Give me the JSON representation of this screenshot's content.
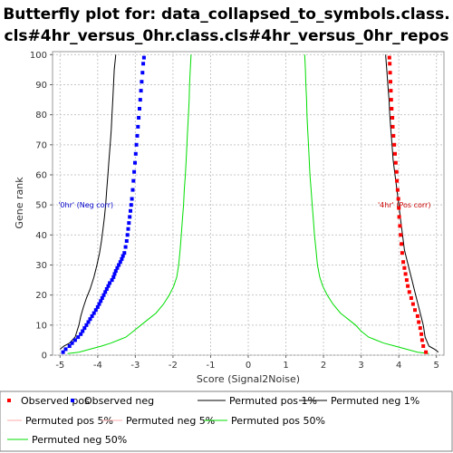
{
  "chart_data": {
    "type": "line",
    "title_lines": [
      "Butterfly plot for: data_collapsed_to_symbols.class.",
      "cls#4hr_versus_0hr.class.cls#4hr_versus_0hr_repos"
    ],
    "xlabel": "Score (Signal2Noise)",
    "ylabel": "Gene rank",
    "xlim": [
      -5.2,
      5.2
    ],
    "ylim": [
      0,
      101
    ],
    "x_ticks": [
      -5,
      -4,
      -3,
      -2,
      -1,
      0,
      1,
      2,
      3,
      4,
      5
    ],
    "y_ticks": [
      0,
      10,
      20,
      30,
      40,
      50,
      60,
      70,
      80,
      90,
      100
    ],
    "grid": true,
    "annotations": [
      {
        "text": "'0hr' (Neg corr)",
        "x": -5.05,
        "y": 50,
        "color": "#0000cc",
        "anchor": "start"
      },
      {
        "text": "'4hr' (Pos corr)",
        "x": 4.85,
        "y": 50,
        "color": "#cc0000",
        "anchor": "end"
      }
    ],
    "series": [
      {
        "name": "Observed pos",
        "style": "markers",
        "color": "#ff0000",
        "points": [
          [
            4.72,
            1
          ],
          [
            4.65,
            3
          ],
          [
            4.62,
            5
          ],
          [
            4.6,
            7
          ],
          [
            4.57,
            9
          ],
          [
            4.53,
            11
          ],
          [
            4.5,
            13
          ],
          [
            4.43,
            15
          ],
          [
            4.38,
            17
          ],
          [
            4.33,
            19
          ],
          [
            4.28,
            21
          ],
          [
            4.24,
            23
          ],
          [
            4.21,
            25
          ],
          [
            4.18,
            27
          ],
          [
            4.15,
            29
          ],
          [
            4.12,
            31
          ],
          [
            4.09,
            34
          ],
          [
            4.07,
            37
          ],
          [
            4.05,
            40
          ],
          [
            4.03,
            43
          ],
          [
            4.01,
            46
          ],
          [
            4.0,
            49
          ],
          [
            3.99,
            52
          ],
          [
            3.97,
            55
          ],
          [
            3.95,
            58
          ],
          [
            3.94,
            61
          ],
          [
            3.92,
            64
          ],
          [
            3.9,
            67
          ],
          [
            3.88,
            70
          ],
          [
            3.86,
            73
          ],
          [
            3.84,
            76
          ],
          [
            3.83,
            79
          ],
          [
            3.81,
            82
          ],
          [
            3.8,
            85
          ],
          [
            3.79,
            88
          ],
          [
            3.78,
            91
          ],
          [
            3.77,
            94
          ],
          [
            3.76,
            97
          ],
          [
            3.75,
            99
          ]
        ]
      },
      {
        "name": "Observed neg",
        "style": "markers",
        "color": "#0000ff",
        "points": [
          [
            -4.92,
            1
          ],
          [
            -4.85,
            2
          ],
          [
            -4.75,
            3
          ],
          [
            -4.68,
            4
          ],
          [
            -4.6,
            5
          ],
          [
            -4.52,
            6
          ],
          [
            -4.45,
            7
          ],
          [
            -4.4,
            8
          ],
          [
            -4.35,
            9
          ],
          [
            -4.3,
            10
          ],
          [
            -4.25,
            11
          ],
          [
            -4.2,
            12
          ],
          [
            -4.15,
            13
          ],
          [
            -4.1,
            14
          ],
          [
            -4.05,
            15
          ],
          [
            -4.0,
            16
          ],
          [
            -3.96,
            17
          ],
          [
            -3.92,
            18
          ],
          [
            -3.88,
            19
          ],
          [
            -3.84,
            20
          ],
          [
            -3.8,
            21
          ],
          [
            -3.76,
            22
          ],
          [
            -3.72,
            23
          ],
          [
            -3.68,
            24
          ],
          [
            -3.62,
            25
          ],
          [
            -3.58,
            26
          ],
          [
            -3.55,
            27
          ],
          [
            -3.52,
            28
          ],
          [
            -3.48,
            29
          ],
          [
            -3.44,
            30
          ],
          [
            -3.4,
            31
          ],
          [
            -3.36,
            32
          ],
          [
            -3.33,
            33
          ],
          [
            -3.29,
            34
          ],
          [
            -3.26,
            36
          ],
          [
            -3.23,
            38
          ],
          [
            -3.21,
            40
          ],
          [
            -3.19,
            42
          ],
          [
            -3.17,
            44
          ],
          [
            -3.15,
            46
          ],
          [
            -3.13,
            48
          ],
          [
            -3.11,
            50
          ],
          [
            -3.09,
            52
          ],
          [
            -3.07,
            55
          ],
          [
            -3.05,
            58
          ],
          [
            -3.03,
            61
          ],
          [
            -3.01,
            64
          ],
          [
            -2.99,
            67
          ],
          [
            -2.97,
            70
          ],
          [
            -2.95,
            73
          ],
          [
            -2.93,
            76
          ],
          [
            -2.91,
            79
          ],
          [
            -2.89,
            82
          ],
          [
            -2.87,
            85
          ],
          [
            -2.85,
            88
          ],
          [
            -2.83,
            91
          ],
          [
            -2.81,
            94
          ],
          [
            -2.79,
            97
          ],
          [
            -2.77,
            99
          ]
        ]
      },
      {
        "name": "Permuted pos 1%",
        "style": "line",
        "color": "#000000",
        "points": [
          [
            5.05,
            1
          ],
          [
            4.95,
            2
          ],
          [
            4.8,
            3
          ],
          [
            4.7,
            6
          ],
          [
            4.65,
            10
          ],
          [
            4.55,
            15
          ],
          [
            4.45,
            20
          ],
          [
            4.35,
            25
          ],
          [
            4.25,
            30
          ],
          [
            4.15,
            35
          ],
          [
            4.1,
            40
          ],
          [
            4.05,
            45
          ],
          [
            4.0,
            50
          ],
          [
            3.95,
            55
          ],
          [
            3.9,
            60
          ],
          [
            3.85,
            65
          ],
          [
            3.82,
            70
          ],
          [
            3.79,
            75
          ],
          [
            3.76,
            80
          ],
          [
            3.74,
            85
          ],
          [
            3.71,
            90
          ],
          [
            3.68,
            95
          ],
          [
            3.65,
            100
          ]
        ]
      },
      {
        "name": "Permuted neg 1%",
        "style": "line",
        "color": "#000000",
        "points": [
          [
            -5.0,
            2
          ],
          [
            -4.9,
            3
          ],
          [
            -4.75,
            4
          ],
          [
            -4.6,
            6
          ],
          [
            -4.55,
            8
          ],
          [
            -4.5,
            10
          ],
          [
            -4.45,
            13
          ],
          [
            -4.38,
            16
          ],
          [
            -4.3,
            19
          ],
          [
            -4.2,
            22
          ],
          [
            -4.1,
            26
          ],
          [
            -4.02,
            30
          ],
          [
            -3.95,
            34
          ],
          [
            -3.9,
            38
          ],
          [
            -3.86,
            42
          ],
          [
            -3.82,
            46
          ],
          [
            -3.79,
            50
          ],
          [
            -3.76,
            55
          ],
          [
            -3.73,
            60
          ],
          [
            -3.7,
            65
          ],
          [
            -3.67,
            70
          ],
          [
            -3.64,
            75
          ],
          [
            -3.62,
            80
          ],
          [
            -3.6,
            85
          ],
          [
            -3.58,
            90
          ],
          [
            -3.56,
            95
          ],
          [
            -3.52,
            100
          ]
        ]
      },
      {
        "name": "Permuted pos 5%",
        "style": "line",
        "color": "#ffaaaa",
        "points": []
      },
      {
        "name": "Permuted neg 5%",
        "style": "line",
        "color": "#ffaaaa",
        "points": []
      },
      {
        "name": "Permuted pos 50%",
        "style": "line",
        "color": "#00dd00",
        "points": [
          [
            4.8,
            0.5
          ],
          [
            4.5,
            1
          ],
          [
            4.2,
            2
          ],
          [
            3.9,
            3
          ],
          [
            3.6,
            4
          ],
          [
            3.4,
            5
          ],
          [
            3.2,
            6
          ],
          [
            3.0,
            8
          ],
          [
            2.85,
            10
          ],
          [
            2.65,
            12
          ],
          [
            2.45,
            14
          ],
          [
            2.25,
            17
          ],
          [
            2.1,
            20
          ],
          [
            1.98,
            23
          ],
          [
            1.9,
            26
          ],
          [
            1.84,
            30
          ],
          [
            1.8,
            35
          ],
          [
            1.76,
            40
          ],
          [
            1.73,
            45
          ],
          [
            1.7,
            50
          ],
          [
            1.67,
            55
          ],
          [
            1.64,
            60
          ],
          [
            1.62,
            65
          ],
          [
            1.6,
            70
          ],
          [
            1.58,
            75
          ],
          [
            1.56,
            80
          ],
          [
            1.55,
            85
          ],
          [
            1.53,
            90
          ],
          [
            1.52,
            95
          ],
          [
            1.5,
            100
          ]
        ]
      },
      {
        "name": "Permuted neg 50%",
        "style": "line",
        "color": "#00dd00",
        "points": [
          [
            -4.8,
            0.5
          ],
          [
            -4.5,
            1
          ],
          [
            -4.2,
            2
          ],
          [
            -3.9,
            3
          ],
          [
            -3.65,
            4
          ],
          [
            -3.45,
            5
          ],
          [
            -3.25,
            6
          ],
          [
            -3.05,
            8
          ],
          [
            -2.85,
            10
          ],
          [
            -2.65,
            12
          ],
          [
            -2.45,
            14
          ],
          [
            -2.25,
            17
          ],
          [
            -2.1,
            20
          ],
          [
            -1.98,
            23
          ],
          [
            -1.9,
            26
          ],
          [
            -1.85,
            30
          ],
          [
            -1.81,
            35
          ],
          [
            -1.78,
            40
          ],
          [
            -1.75,
            45
          ],
          [
            -1.72,
            50
          ],
          [
            -1.7,
            55
          ],
          [
            -1.67,
            60
          ],
          [
            -1.65,
            65
          ],
          [
            -1.63,
            70
          ],
          [
            -1.61,
            75
          ],
          [
            -1.59,
            80
          ],
          [
            -1.57,
            85
          ],
          [
            -1.56,
            90
          ],
          [
            -1.54,
            95
          ],
          [
            -1.52,
            100
          ]
        ]
      }
    ]
  }
}
